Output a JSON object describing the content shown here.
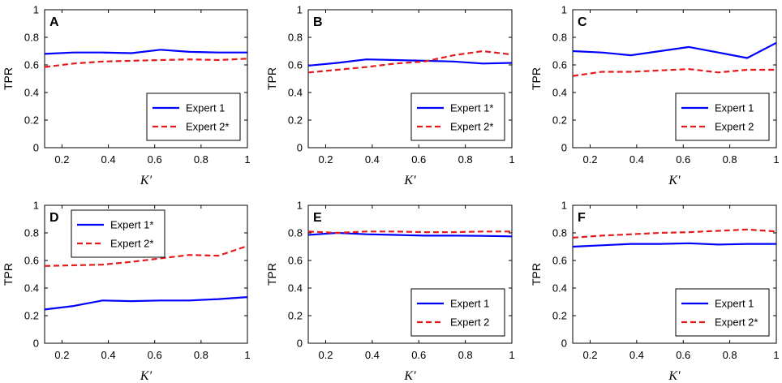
{
  "figure": {
    "background": "#ffffff"
  },
  "chart_data": [
    {
      "type": "line",
      "panel_label": "A",
      "x": [
        0.125,
        0.25,
        0.375,
        0.5,
        0.625,
        0.75,
        0.875,
        1.0
      ],
      "series": [
        {
          "name": "Expert 1",
          "color": "#0000ff",
          "dash": "solid",
          "values": [
            0.68,
            0.69,
            0.69,
            0.685,
            0.71,
            0.695,
            0.69,
            0.69
          ]
        },
        {
          "name": "Expert 2*",
          "color": "#e41a1c",
          "dash": "dashed",
          "values": [
            0.585,
            0.61,
            0.625,
            0.63,
            0.635,
            0.64,
            0.635,
            0.645
          ]
        }
      ],
      "xlabel": "K′",
      "ylabel": "TPR",
      "xlim": [
        0.125,
        1.0
      ],
      "ylim": [
        0,
        1
      ],
      "xticks": [
        0.2,
        0.4,
        0.6,
        0.8,
        1
      ],
      "xticklabels": [
        "0.2",
        "0.4",
        "0.6",
        "0.8",
        "1"
      ],
      "yticks": [
        0,
        0.2,
        0.4,
        0.6,
        0.8,
        1
      ],
      "yticklabels": [
        "0",
        "0.2",
        "0.4",
        "0.6",
        "0.8",
        "1"
      ],
      "legend_position": "bottom-right"
    },
    {
      "type": "line",
      "panel_label": "B",
      "x": [
        0.125,
        0.25,
        0.375,
        0.5,
        0.625,
        0.75,
        0.875,
        1.0
      ],
      "series": [
        {
          "name": "Expert 1*",
          "color": "#0000ff",
          "dash": "solid",
          "values": [
            0.595,
            0.615,
            0.64,
            0.635,
            0.63,
            0.625,
            0.61,
            0.615
          ]
        },
        {
          "name": "Expert 2*",
          "color": "#e41a1c",
          "dash": "dashed",
          "values": [
            0.545,
            0.565,
            0.585,
            0.61,
            0.625,
            0.67,
            0.7,
            0.675
          ]
        }
      ],
      "xlabel": "K′",
      "ylabel": "TPR",
      "xlim": [
        0.125,
        1.0
      ],
      "ylim": [
        0,
        1
      ],
      "xticks": [
        0.2,
        0.4,
        0.6,
        0.8,
        1
      ],
      "xticklabels": [
        "0.2",
        "0.4",
        "0.6",
        "0.8",
        "1"
      ],
      "yticks": [
        0,
        0.2,
        0.4,
        0.6,
        0.8,
        1
      ],
      "yticklabels": [
        "0",
        "0.2",
        "0.4",
        "0.6",
        "0.8",
        "1"
      ],
      "legend_position": "bottom-right"
    },
    {
      "type": "line",
      "panel_label": "C",
      "x": [
        0.125,
        0.25,
        0.375,
        0.5,
        0.625,
        0.75,
        0.875,
        1.0
      ],
      "series": [
        {
          "name": "Expert 1",
          "color": "#0000ff",
          "dash": "solid",
          "values": [
            0.7,
            0.69,
            0.67,
            0.7,
            0.73,
            0.69,
            0.65,
            0.76
          ]
        },
        {
          "name": "Expert 2",
          "color": "#e41a1c",
          "dash": "dashed",
          "values": [
            0.52,
            0.55,
            0.55,
            0.56,
            0.57,
            0.545,
            0.565,
            0.565
          ]
        }
      ],
      "xlabel": "K′",
      "ylabel": "TPR",
      "xlim": [
        0.125,
        1.0
      ],
      "ylim": [
        0,
        1
      ],
      "xticks": [
        0.2,
        0.4,
        0.6,
        0.8,
        1
      ],
      "xticklabels": [
        "0.2",
        "0.4",
        "0.6",
        "0.8",
        "1"
      ],
      "yticks": [
        0,
        0.2,
        0.4,
        0.6,
        0.8,
        1
      ],
      "yticklabels": [
        "0",
        "0.2",
        "0.4",
        "0.6",
        "0.8",
        "1"
      ],
      "legend_position": "bottom-right"
    },
    {
      "type": "line",
      "panel_label": "D",
      "x": [
        0.125,
        0.25,
        0.375,
        0.5,
        0.625,
        0.75,
        0.875,
        1.0
      ],
      "series": [
        {
          "name": "Expert 1*",
          "color": "#0000ff",
          "dash": "solid",
          "values": [
            0.245,
            0.27,
            0.31,
            0.305,
            0.31,
            0.31,
            0.32,
            0.335
          ]
        },
        {
          "name": "Expert 2*",
          "color": "#e41a1c",
          "dash": "dashed",
          "values": [
            0.56,
            0.565,
            0.57,
            0.59,
            0.615,
            0.64,
            0.635,
            0.705
          ]
        }
      ],
      "xlabel": "K′",
      "ylabel": "TPR",
      "xlim": [
        0.125,
        1.0
      ],
      "ylim": [
        0,
        1
      ],
      "xticks": [
        0.2,
        0.4,
        0.6,
        0.8,
        1
      ],
      "xticklabels": [
        "0.2",
        "0.4",
        "0.6",
        "0.8",
        "1"
      ],
      "yticks": [
        0,
        0.2,
        0.4,
        0.6,
        0.8,
        1
      ],
      "yticklabels": [
        "0",
        "0.2",
        "0.4",
        "0.6",
        "0.8",
        "1"
      ],
      "legend_position": "top-left"
    },
    {
      "type": "line",
      "panel_label": "E",
      "x": [
        0.125,
        0.25,
        0.375,
        0.5,
        0.625,
        0.75,
        0.875,
        1.0
      ],
      "series": [
        {
          "name": "Expert 1",
          "color": "#0000ff",
          "dash": "solid",
          "values": [
            0.785,
            0.8,
            0.79,
            0.785,
            0.78,
            0.78,
            0.778,
            0.775
          ]
        },
        {
          "name": "Expert 2",
          "color": "#e41a1c",
          "dash": "dashed",
          "values": [
            0.81,
            0.8,
            0.81,
            0.81,
            0.805,
            0.805,
            0.81,
            0.81
          ]
        }
      ],
      "xlabel": "K′",
      "ylabel": "TPR",
      "xlim": [
        0.125,
        1.0
      ],
      "ylim": [
        0,
        1
      ],
      "xticks": [
        0.2,
        0.4,
        0.6,
        0.8,
        1
      ],
      "xticklabels": [
        "0.2",
        "0.4",
        "0.6",
        "0.8",
        "1"
      ],
      "yticks": [
        0,
        0.2,
        0.4,
        0.6,
        0.8,
        1
      ],
      "yticklabels": [
        "0",
        "0.2",
        "0.4",
        "0.6",
        "0.8",
        "1"
      ],
      "legend_position": "bottom-right"
    },
    {
      "type": "line",
      "panel_label": "F",
      "x": [
        0.125,
        0.25,
        0.375,
        0.5,
        0.625,
        0.75,
        0.875,
        1.0
      ],
      "series": [
        {
          "name": "Expert 1",
          "color": "#0000ff",
          "dash": "solid",
          "values": [
            0.7,
            0.71,
            0.72,
            0.72,
            0.725,
            0.715,
            0.72,
            0.72
          ]
        },
        {
          "name": "Expert 2*",
          "color": "#e41a1c",
          "dash": "dashed",
          "values": [
            0.765,
            0.78,
            0.79,
            0.8,
            0.805,
            0.815,
            0.825,
            0.81
          ]
        }
      ],
      "xlabel": "K′",
      "ylabel": "TPR",
      "xlim": [
        0.125,
        1.0
      ],
      "ylim": [
        0,
        1
      ],
      "xticks": [
        0.2,
        0.4,
        0.6,
        0.8,
        1
      ],
      "xticklabels": [
        "0.2",
        "0.4",
        "0.6",
        "0.8",
        "1"
      ],
      "yticks": [
        0,
        0.2,
        0.4,
        0.6,
        0.8,
        1
      ],
      "yticklabels": [
        "0",
        "0.2",
        "0.4",
        "0.6",
        "0.8",
        "1"
      ],
      "legend_position": "bottom-right"
    }
  ]
}
